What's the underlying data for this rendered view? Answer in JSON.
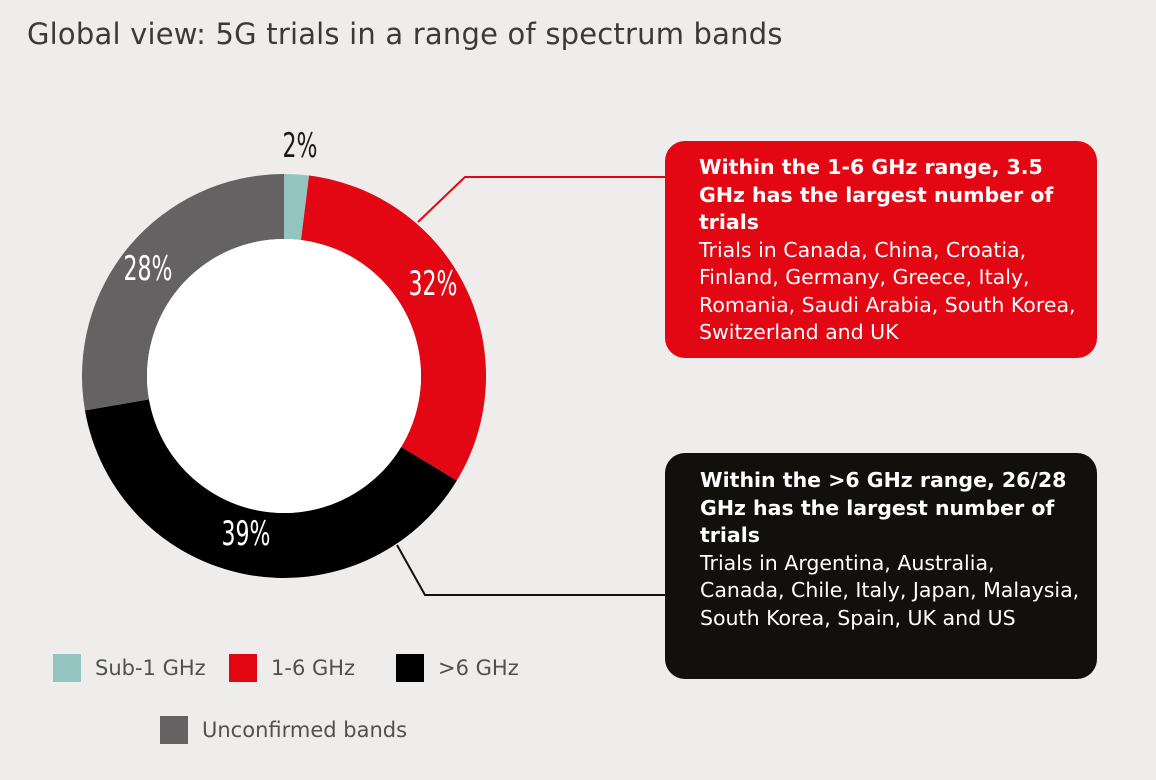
{
  "title": "Global view: 5G trials in a range of spectrum bands",
  "chart_data": {
    "type": "pie",
    "title": "Global view: 5G trials in a range of spectrum bands",
    "donut": true,
    "slices": [
      {
        "label": "Sub-1 GHz",
        "value": 2,
        "display": "2%",
        "color": "#94c4bf"
      },
      {
        "label": "1-6 GHz",
        "value": 32,
        "display": "32%",
        "color": "#e30613"
      },
      {
        "label": ">6 GHz",
        "value": 39,
        "display": "39%",
        "color": "#000000"
      },
      {
        "label": "Unconfirmed bands",
        "value": 28,
        "display": "28%",
        "color": "#656263"
      }
    ],
    "legend_placement": "bottom-left"
  },
  "callouts": {
    "mid_band": {
      "heading": "Within the 1-6 GHz range, 3.5 GHz has the largest number of trials",
      "body": "Trials in Canada, China, Croatia, Finland, Germany, Greece, Italy, Romania, Saudi Arabia, South Korea, Switzerland and UK",
      "color": "#e30613"
    },
    "high_band": {
      "heading": "Within the >6 GHz range, 26/28 GHz has the largest number of trials",
      "body": "Trials in Argentina, Australia, Canada, Chile, Italy, Japan, Malaysia, South Korea, Spain, UK and US",
      "color": "#12100d"
    }
  },
  "legend": [
    {
      "label": "Sub-1 GHz",
      "color": "#94c4bf"
    },
    {
      "label": "1-6 GHz",
      "color": "#e30613"
    },
    {
      "label": ">6 GHz",
      "color": "#000000"
    },
    {
      "label": "Unconfirmed bands",
      "color": "#656263"
    }
  ]
}
